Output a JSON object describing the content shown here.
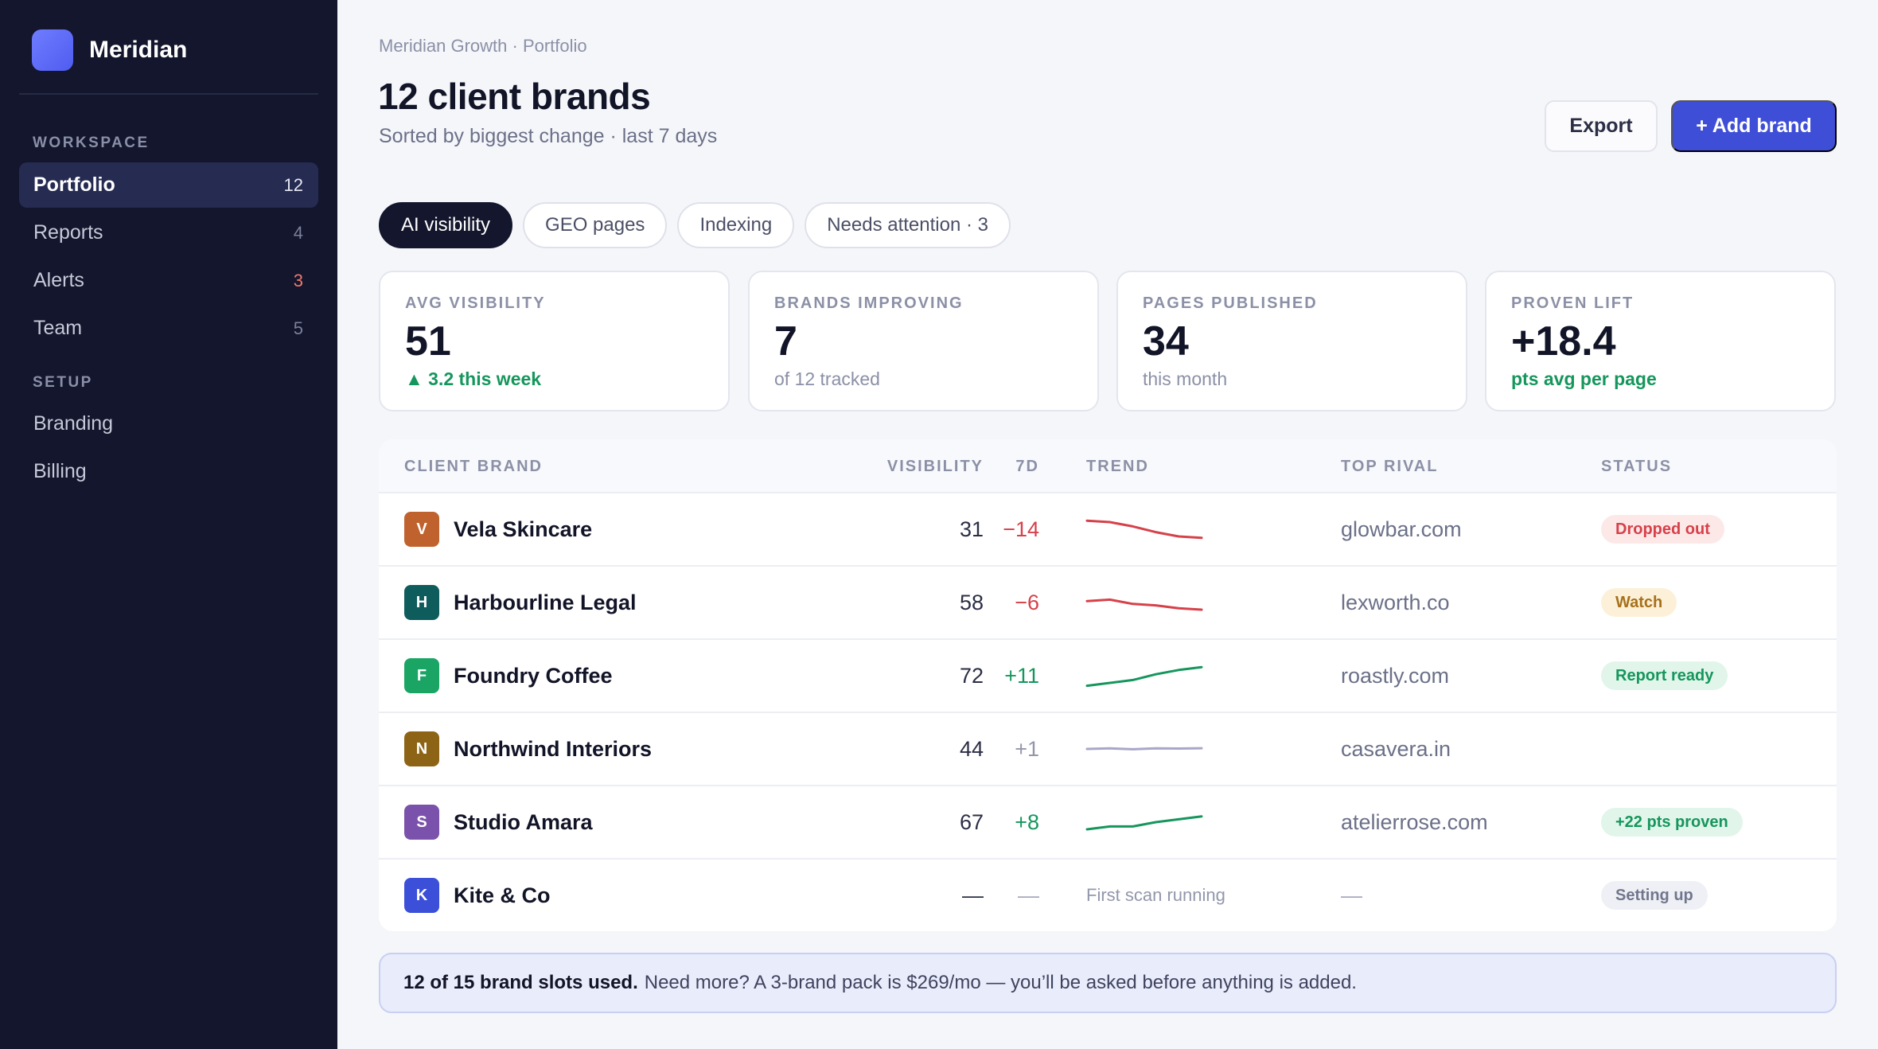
{
  "app": {
    "name": "Meridian"
  },
  "sidebar": {
    "sections": [
      {
        "label": "WORKSPACE"
      },
      {
        "label": "SETUP"
      }
    ],
    "items": [
      {
        "label": "Portfolio",
        "count": "12"
      },
      {
        "label": "Reports",
        "count": "4"
      },
      {
        "label": "Alerts",
        "count": "3"
      },
      {
        "label": "Team",
        "count": "5"
      },
      {
        "label": "Branding"
      },
      {
        "label": "Billing"
      }
    ]
  },
  "header": {
    "breadcrumb": "Meridian Growth · Portfolio",
    "title": "12 client brands",
    "subtitle": "Sorted by biggest change · last 7 days",
    "export_label": "Export",
    "add_label": "+ Add brand"
  },
  "tabs": [
    {
      "label": "AI visibility"
    },
    {
      "label": "GEO pages"
    },
    {
      "label": "Indexing"
    },
    {
      "label": "Needs attention · 3"
    }
  ],
  "stats": [
    {
      "label": "AVG VISIBILITY",
      "value": "51",
      "note": "▲ 3.2 this week"
    },
    {
      "label": "BRANDS IMPROVING",
      "value": "7",
      "note": "of 12 tracked"
    },
    {
      "label": "PAGES PUBLISHED",
      "value": "34",
      "note": "this month"
    },
    {
      "label": "PROVEN LIFT",
      "value": "+18.4",
      "note": "pts avg per page"
    }
  ],
  "table": {
    "columns": [
      "CLIENT BRAND",
      "VISIBILITY",
      "7D",
      "TREND",
      "TOP RIVAL",
      "STATUS"
    ],
    "rows": [
      {
        "initial": "V",
        "brand": "Vela Skincare",
        "visibility": "31",
        "delta": "−14",
        "trend": [
          6,
          5,
          2,
          -2,
          -5,
          -6
        ],
        "rival": "glowbar.com",
        "status": "Dropped out"
      },
      {
        "initial": "H",
        "brand": "Harbourline Legal",
        "visibility": "58",
        "delta": "−6",
        "trend": [
          1,
          2,
          -1,
          -2,
          -4,
          -5
        ],
        "rival": "lexworth.co",
        "status": "Watch"
      },
      {
        "initial": "F",
        "brand": "Foundry Coffee",
        "visibility": "72",
        "delta": "+11",
        "trend": [
          -7,
          -5,
          -3,
          1,
          4,
          6
        ],
        "rival": "roastly.com",
        "status": "Report ready"
      },
      {
        "initial": "N",
        "brand": "Northwind Interiors",
        "visibility": "44",
        "delta": "+1",
        "trend": [
          0,
          0.4,
          -0.2,
          0.4,
          0.3,
          0.5
        ],
        "rival": "casavera.in",
        "status": ""
      },
      {
        "initial": "S",
        "brand": "Studio Amara",
        "visibility": "67",
        "delta": "+8",
        "trend": [
          -5,
          -3,
          -3,
          0,
          2,
          4
        ],
        "rival": "atelierrose.com",
        "status": "+22 pts proven"
      },
      {
        "initial": "K",
        "brand": "Kite & Co",
        "visibility": "—",
        "delta": "—",
        "trend_text": "First scan running",
        "rival": "—",
        "status": "Setting up"
      }
    ]
  },
  "colors": {
    "avatars": [
      "#c0622d",
      "#0f5c5c",
      "#1aa565",
      "#8d6415",
      "#7b52ab",
      "#3b4fd8"
    ],
    "trend": [
      "#d6414a",
      "#d6414a",
      "#15965c",
      "#a8a7c8",
      "#15965c"
    ]
  },
  "banner": {
    "bold": "12 of 15 brand slots used.",
    "text": "Need more? A 3-brand pack is $269/mo — you’ll be asked before anything is added."
  }
}
